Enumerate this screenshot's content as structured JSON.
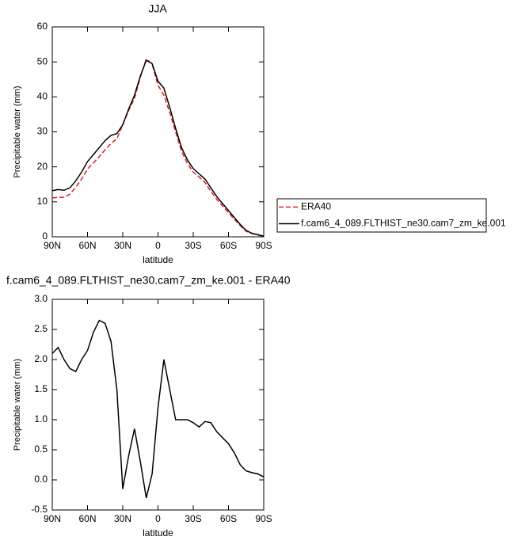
{
  "chart_data": [
    {
      "type": "line",
      "title": "JJA",
      "x_label": "latitude",
      "y_label": "Precipitable water (mm)",
      "x": [
        90,
        85,
        80,
        75,
        70,
        65,
        60,
        55,
        50,
        45,
        40,
        35,
        30,
        25,
        20,
        15,
        10,
        5,
        0,
        -5,
        -10,
        -15,
        -20,
        -25,
        -30,
        -35,
        -40,
        -45,
        -50,
        -55,
        -60,
        -65,
        -70,
        -75,
        -80,
        -85,
        -90
      ],
      "series": [
        {
          "name": "ERA40",
          "color": "#e41a1c",
          "dashed": true,
          "values": [
            11.1,
            11.3,
            11.3,
            12.2,
            14.2,
            16.5,
            19.4,
            21.1,
            22.9,
            24.9,
            26.7,
            28,
            32.1,
            36.1,
            39.6,
            45.7,
            50.8,
            49.4,
            43.3,
            40.5,
            35.5,
            30,
            24.5,
            21,
            18.5,
            17.1,
            15.5,
            13,
            10.7,
            8.8,
            6.9,
            5,
            3.2,
            1.6,
            0.9,
            0.5,
            0.15
          ]
        },
        {
          "name": "f.cam6_4_089.FLTHIST_ne30.cam7_zm_ke.001",
          "color": "#000000",
          "dashed": false,
          "values": [
            13.2,
            13.5,
            13.3,
            14,
            16,
            18.5,
            21.5,
            23.5,
            25.5,
            27.5,
            29,
            29.5,
            32,
            36.5,
            40.5,
            46,
            50.5,
            49.5,
            44.5,
            42.5,
            37,
            31,
            25.5,
            22,
            19.5,
            18,
            16.5,
            14,
            11.5,
            9.5,
            7.5,
            5.5,
            3.5,
            1.8,
            1,
            0.6,
            0.2
          ]
        }
      ],
      "xlim": [
        90,
        -90
      ],
      "xticks": [
        {
          "value": 90,
          "label": "90N"
        },
        {
          "value": 60,
          "label": "60N"
        },
        {
          "value": 30,
          "label": "30N"
        },
        0,
        {
          "value": -30,
          "label": "30S"
        },
        {
          "value": -60,
          "label": "60S"
        },
        {
          "value": -90,
          "label": "90S"
        }
      ],
      "ylim": [
        0,
        60
      ],
      "yticks": [
        0,
        10,
        20,
        30,
        40,
        50,
        60
      ],
      "legend": "right"
    },
    {
      "type": "line",
      "title": "f.cam6_4_089.FLTHIST_ne30.cam7_zm_ke.001 - ERA40",
      "x_label": "latitude",
      "y_label": "Precipitable water (mm)",
      "x": [
        90,
        85,
        80,
        75,
        70,
        65,
        60,
        55,
        50,
        45,
        40,
        35,
        30,
        25,
        20,
        15,
        10,
        5,
        0,
        -5,
        -10,
        -15,
        -20,
        -25,
        -30,
        -35,
        -40,
        -45,
        -50,
        -55,
        -60,
        -65,
        -70,
        -75,
        -80,
        -85,
        -90
      ],
      "series": [
        {
          "color": "#000000",
          "dashed": false,
          "values": [
            2.1,
            2.2,
            2.0,
            1.85,
            1.8,
            2.0,
            2.15,
            2.45,
            2.65,
            2.6,
            2.3,
            1.5,
            -0.15,
            0.4,
            0.85,
            0.3,
            -0.3,
            0.1,
            1.2,
            2.0,
            1.5,
            1.0,
            1.0,
            1.0,
            0.95,
            0.88,
            0.97,
            0.95,
            0.8,
            0.7,
            0.6,
            0.45,
            0.25,
            0.15,
            0.12,
            0.1,
            0.05
          ]
        }
      ],
      "xlim": [
        90,
        -90
      ],
      "xticks": [
        {
          "value": 90,
          "label": "90N"
        },
        {
          "value": 60,
          "label": "60N"
        },
        {
          "value": 30,
          "label": "30N"
        },
        0,
        {
          "value": -30,
          "label": "30S"
        },
        {
          "value": -60,
          "label": "60S"
        },
        {
          "value": -90,
          "label": "90S"
        }
      ],
      "ylim": [
        -0.5,
        3
      ],
      "yticks": [
        {
          "value": -0.5,
          "label": "-0.5"
        },
        {
          "value": 0,
          "label": "0.0"
        },
        {
          "value": 0.5,
          "label": "0.5"
        },
        {
          "value": 1,
          "label": "1.0"
        },
        {
          "value": 1.5,
          "label": "1.5"
        },
        {
          "value": 2,
          "label": "2.0"
        },
        {
          "value": 2.5,
          "label": "2.5"
        },
        {
          "value": 3,
          "label": "3.0"
        }
      ]
    }
  ]
}
